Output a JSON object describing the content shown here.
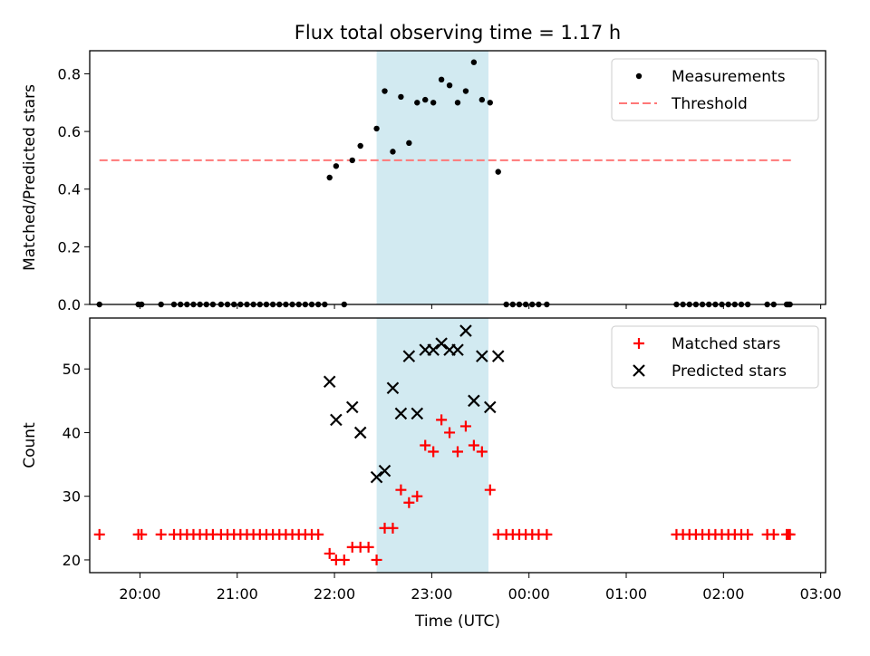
{
  "title": "Flux total observing time = 1.17 h",
  "chart_data": [
    {
      "type": "scatter",
      "ylabel": "Matched/Predicted stars",
      "xlabel": "",
      "xlim": [
        "19:29",
        "03:03"
      ],
      "ylim": [
        0,
        0.88
      ],
      "yticks": [
        "0.0",
        "0.2",
        "0.4",
        "0.6",
        "0.8"
      ],
      "shaded_region": {
        "start": "22:26",
        "end": "23:35",
        "color": "#add8e6"
      },
      "threshold": {
        "value": 0.5,
        "start": "19:35",
        "end": "02:43",
        "color": "#ff7777",
        "style": "dashed"
      },
      "legend_position": "upper right",
      "legend": [
        {
          "label": "Measurements",
          "marker": "dot",
          "color": "#000000"
        },
        {
          "label": "Threshold",
          "marker": "dashed-line",
          "color": "#ff7777"
        }
      ],
      "series": [
        {
          "name": "Measurements",
          "color": "#000000",
          "points": [
            [
              "19:35",
              0
            ],
            [
              "19:59",
              0
            ],
            [
              "20:01",
              0
            ],
            [
              "20:13",
              0
            ],
            [
              "20:21",
              0
            ],
            [
              "20:25",
              0
            ],
            [
              "20:29",
              0
            ],
            [
              "20:33",
              0
            ],
            [
              "20:37",
              0
            ],
            [
              "20:41",
              0
            ],
            [
              "20:45",
              0
            ],
            [
              "20:50",
              0
            ],
            [
              "20:54",
              0
            ],
            [
              "20:58",
              0
            ],
            [
              "21:02",
              0
            ],
            [
              "21:06",
              0
            ],
            [
              "21:10",
              0
            ],
            [
              "21:14",
              0
            ],
            [
              "21:18",
              0
            ],
            [
              "21:22",
              0
            ],
            [
              "21:26",
              0
            ],
            [
              "21:30",
              0
            ],
            [
              "21:34",
              0
            ],
            [
              "21:38",
              0
            ],
            [
              "21:42",
              0
            ],
            [
              "21:46",
              0
            ],
            [
              "21:50",
              0
            ],
            [
              "21:54",
              0
            ],
            [
              "21:57",
              0.44
            ],
            [
              "22:01",
              0.48
            ],
            [
              "22:06",
              0
            ],
            [
              "22:11",
              0.5
            ],
            [
              "22:16",
              0.55
            ],
            [
              "22:26",
              0.61
            ],
            [
              "22:31",
              0.74
            ],
            [
              "22:36",
              0.53
            ],
            [
              "22:41",
              0.72
            ],
            [
              "22:46",
              0.56
            ],
            [
              "22:51",
              0.7
            ],
            [
              "22:56",
              0.71
            ],
            [
              "23:01",
              0.7
            ],
            [
              "23:06",
              0.78
            ],
            [
              "23:11",
              0.76
            ],
            [
              "23:16",
              0.7
            ],
            [
              "23:21",
              0.74
            ],
            [
              "23:26",
              0.84
            ],
            [
              "23:31",
              0.71
            ],
            [
              "23:36",
              0.7
            ],
            [
              "23:41",
              0.46
            ],
            [
              "23:46",
              0
            ],
            [
              "23:50",
              0
            ],
            [
              "23:54",
              0
            ],
            [
              "23:58",
              0
            ],
            [
              "00:02",
              0
            ],
            [
              "00:06",
              0
            ],
            [
              "00:11",
              0
            ],
            [
              "01:31",
              0
            ],
            [
              "01:35",
              0
            ],
            [
              "01:39",
              0
            ],
            [
              "01:43",
              0
            ],
            [
              "01:47",
              0
            ],
            [
              "01:51",
              0
            ],
            [
              "01:55",
              0
            ],
            [
              "01:59",
              0
            ],
            [
              "02:03",
              0
            ],
            [
              "02:07",
              0
            ],
            [
              "02:11",
              0
            ],
            [
              "02:15",
              0
            ],
            [
              "02:27",
              0
            ],
            [
              "02:31",
              0
            ],
            [
              "02:39",
              0
            ],
            [
              "02:40",
              0
            ],
            [
              "02:41",
              0
            ]
          ]
        }
      ]
    },
    {
      "type": "scatter",
      "ylabel": "Count",
      "xlabel": "Time (UTC)",
      "xlim": [
        "19:29",
        "03:03"
      ],
      "ylim": [
        18,
        58
      ],
      "yticks": [
        "20",
        "30",
        "40",
        "50"
      ],
      "xticks": [
        "20:00",
        "21:00",
        "22:00",
        "23:00",
        "00:00",
        "01:00",
        "02:00",
        "03:00"
      ],
      "shaded_region": {
        "start": "22:26",
        "end": "23:35",
        "color": "#add8e6"
      },
      "legend_position": "upper right",
      "legend": [
        {
          "label": "Matched stars",
          "marker": "plus",
          "color": "#ff0000"
        },
        {
          "label": "Predicted stars",
          "marker": "x",
          "color": "#000000"
        }
      ],
      "series": [
        {
          "name": "Matched stars",
          "color": "#ff0000",
          "points": [
            [
              "19:35",
              24
            ],
            [
              "19:59",
              24
            ],
            [
              "20:01",
              24
            ],
            [
              "20:13",
              24
            ],
            [
              "20:21",
              24
            ],
            [
              "20:25",
              24
            ],
            [
              "20:29",
              24
            ],
            [
              "20:33",
              24
            ],
            [
              "20:37",
              24
            ],
            [
              "20:41",
              24
            ],
            [
              "20:45",
              24
            ],
            [
              "20:50",
              24
            ],
            [
              "20:54",
              24
            ],
            [
              "20:58",
              24
            ],
            [
              "21:02",
              24
            ],
            [
              "21:06",
              24
            ],
            [
              "21:10",
              24
            ],
            [
              "21:14",
              24
            ],
            [
              "21:18",
              24
            ],
            [
              "21:22",
              24
            ],
            [
              "21:26",
              24
            ],
            [
              "21:30",
              24
            ],
            [
              "21:34",
              24
            ],
            [
              "21:38",
              24
            ],
            [
              "21:42",
              24
            ],
            [
              "21:46",
              24
            ],
            [
              "21:50",
              24
            ],
            [
              "21:57",
              21
            ],
            [
              "22:01",
              20
            ],
            [
              "22:06",
              20
            ],
            [
              "22:11",
              22
            ],
            [
              "22:16",
              22
            ],
            [
              "22:21",
              22
            ],
            [
              "22:26",
              20
            ],
            [
              "22:31",
              25
            ],
            [
              "22:36",
              25
            ],
            [
              "22:41",
              31
            ],
            [
              "22:46",
              29
            ],
            [
              "22:51",
              30
            ],
            [
              "22:56",
              38
            ],
            [
              "23:01",
              37
            ],
            [
              "23:06",
              42
            ],
            [
              "23:11",
              40
            ],
            [
              "23:16",
              37
            ],
            [
              "23:21",
              41
            ],
            [
              "23:26",
              38
            ],
            [
              "23:31",
              37
            ],
            [
              "23:36",
              31
            ],
            [
              "23:41",
              24
            ],
            [
              "23:46",
              24
            ],
            [
              "23:50",
              24
            ],
            [
              "23:54",
              24
            ],
            [
              "23:58",
              24
            ],
            [
              "00:02",
              24
            ],
            [
              "00:06",
              24
            ],
            [
              "00:11",
              24
            ],
            [
              "01:31",
              24
            ],
            [
              "01:35",
              24
            ],
            [
              "01:39",
              24
            ],
            [
              "01:43",
              24
            ],
            [
              "01:47",
              24
            ],
            [
              "01:51",
              24
            ],
            [
              "01:55",
              24
            ],
            [
              "01:59",
              24
            ],
            [
              "02:03",
              24
            ],
            [
              "02:07",
              24
            ],
            [
              "02:11",
              24
            ],
            [
              "02:15",
              24
            ],
            [
              "02:27",
              24
            ],
            [
              "02:31",
              24
            ],
            [
              "02:39",
              24
            ],
            [
              "02:40",
              24
            ],
            [
              "02:41",
              24
            ]
          ]
        },
        {
          "name": "Predicted stars",
          "color": "#000000",
          "points": [
            [
              "21:57",
              48
            ],
            [
              "22:01",
              42
            ],
            [
              "22:11",
              44
            ],
            [
              "22:16",
              40
            ],
            [
              "22:26",
              33
            ],
            [
              "22:31",
              34
            ],
            [
              "22:36",
              47
            ],
            [
              "22:41",
              43
            ],
            [
              "22:46",
              52
            ],
            [
              "22:51",
              43
            ],
            [
              "22:56",
              53
            ],
            [
              "23:01",
              53
            ],
            [
              "23:06",
              54
            ],
            [
              "23:11",
              53
            ],
            [
              "23:16",
              53
            ],
            [
              "23:21",
              56
            ],
            [
              "23:26",
              45
            ],
            [
              "23:31",
              52
            ],
            [
              "23:36",
              44
            ],
            [
              "23:41",
              52
            ]
          ]
        }
      ]
    }
  ]
}
